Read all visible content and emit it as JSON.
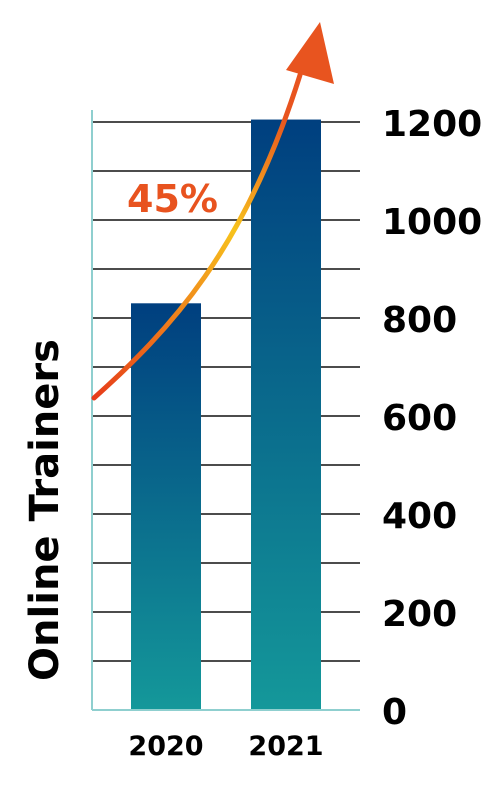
{
  "chart_data": {
    "type": "bar",
    "categories": [
      "2020",
      "2021"
    ],
    "values": [
      830,
      1205
    ],
    "ylabel": "Online Trainers",
    "ylim": [
      0,
      1200
    ],
    "yticks": [
      0,
      200,
      400,
      600,
      800,
      1000,
      1200
    ],
    "y_axis_side": "right",
    "grid": true,
    "annotation": {
      "text": "45%",
      "kind": "growth-arrow"
    },
    "colors": {
      "bar_top": "#003f7f",
      "bar_bottom": "#14989a",
      "grid": "#111111",
      "axis": "#8fcfcf",
      "annotation_text": "#e8531f",
      "arrow_start": "#e63a1a",
      "arrow_mid": "#f7c21c",
      "arrow_end": "#e8541f",
      "labels": "#000000"
    }
  }
}
